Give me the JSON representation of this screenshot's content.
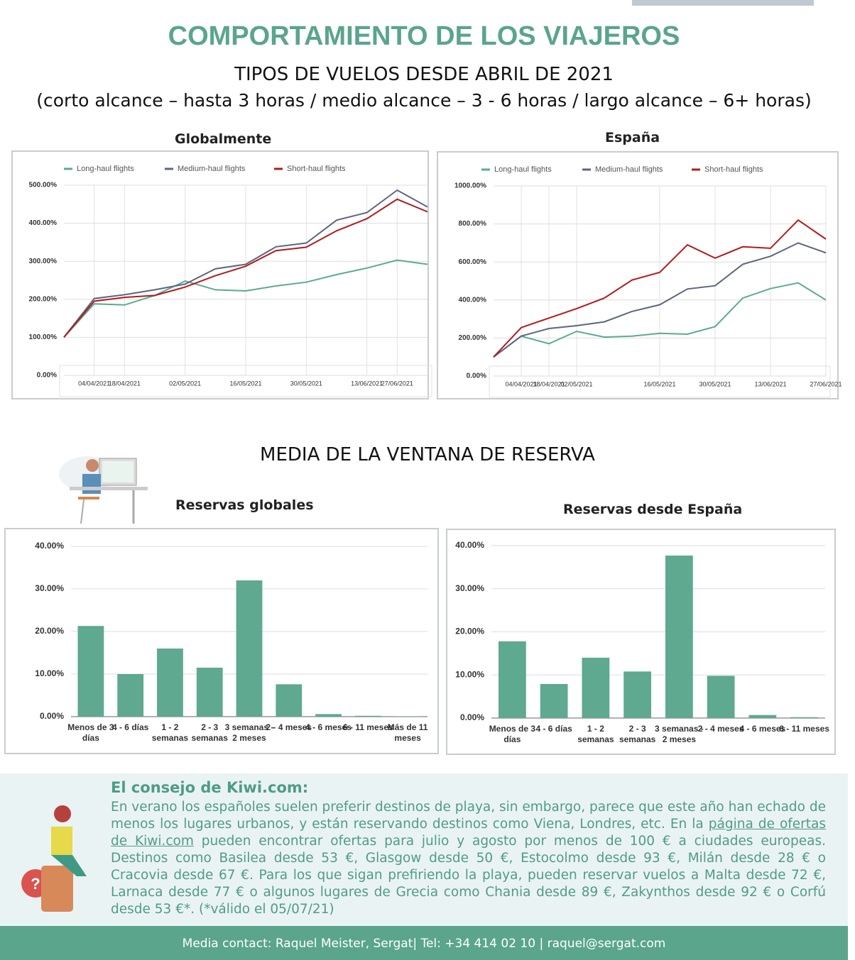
{
  "header": {
    "title": "COMPORTAMIENTO DE LOS VIAJEROS",
    "subtitle": "TIPOS DE VUELOS DESDE ABRIL DE 2021",
    "subtitle2": "(corto alcance – hasta 3 horas / medio alcance – 3 - 6 horas / largo alcance – 6+ horas)"
  },
  "section_title": "MEDIA DE LA VENTANA DE RESERVA",
  "chart_data": [
    {
      "type": "line",
      "title": "Globalmente",
      "categories": [
        null,
        "04/04/2021",
        "18/04/2021",
        null,
        "02/05/2021",
        null,
        "16/05/2021",
        null,
        "30/05/2021",
        null,
        "13/06/2021",
        "27/06/2021",
        null
      ],
      "series": [
        {
          "name": "Long-haul flights",
          "color": "#5aab92",
          "values": [
            100,
            188,
            185,
            210,
            248,
            225,
            222,
            235,
            245,
            265,
            282,
            303,
            292
          ]
        },
        {
          "name": "Medium-haul flights",
          "color": "#5d6580",
          "values": [
            100,
            202,
            212,
            225,
            240,
            280,
            292,
            338,
            348,
            408,
            428,
            487,
            443
          ]
        },
        {
          "name": "Short-haul flights",
          "color": "#b01c1c",
          "values": [
            100,
            195,
            205,
            210,
            232,
            262,
            287,
            328,
            337,
            380,
            412,
            463,
            430
          ]
        }
      ],
      "ylim": [
        0,
        500
      ],
      "yticks": [
        {
          "value": 0,
          "label": "0.00%"
        },
        {
          "value": 100,
          "label": "100.00%"
        },
        {
          "value": 200,
          "label": "200.00%"
        },
        {
          "value": 300,
          "label": "300.00%"
        },
        {
          "value": 400,
          "label": "400.00%"
        },
        {
          "value": 500,
          "label": "500.00%"
        }
      ],
      "grid": true,
      "legend": "top"
    },
    {
      "type": "line",
      "title": "España",
      "categories": [
        null,
        "04/04/2021",
        "18/04/2021",
        "02/05/2021",
        null,
        null,
        "16/05/2021",
        null,
        "30/05/2021",
        null,
        "13/06/2021",
        null,
        "27/06/2021"
      ],
      "series": [
        {
          "name": "Long-haul flights",
          "color": "#5aab92",
          "values": [
            100,
            210,
            170,
            235,
            205,
            210,
            225,
            220,
            260,
            410,
            460,
            490,
            400
          ]
        },
        {
          "name": "Medium-haul flights",
          "color": "#5d6580",
          "values": [
            100,
            210,
            250,
            265,
            285,
            340,
            375,
            458,
            475,
            588,
            630,
            700,
            648
          ]
        },
        {
          "name": "Short-haul flights",
          "color": "#b01c1c",
          "values": [
            100,
            255,
            305,
            355,
            410,
            505,
            545,
            690,
            620,
            680,
            672,
            820,
            720
          ]
        }
      ],
      "ylim": [
        0,
        1000
      ],
      "yticks": [
        {
          "value": 0,
          "label": "0.00%"
        },
        {
          "value": 200,
          "label": "200.00%"
        },
        {
          "value": 400,
          "label": "400.00%"
        },
        {
          "value": 600,
          "label": "600.00%"
        },
        {
          "value": 800,
          "label": "800.00%"
        },
        {
          "value": 1000,
          "label": "1000.00%"
        }
      ],
      "grid": true,
      "legend": "top"
    },
    {
      "type": "bar",
      "title": "Reservas globales",
      "color": "#5ea98f",
      "categories": [
        "Menos de 3 días",
        "4 - 6 días",
        "1 - 2 semanas",
        "2 - 3 semanas",
        "3 semanas - 2 meses",
        "2 - 4 meses",
        "4 - 6 meses",
        "6 - 11 meses",
        "Más de 11 meses"
      ],
      "values": [
        21.3,
        10,
        16,
        11.5,
        32,
        7.6,
        0.6,
        0.2,
        0.05
      ],
      "ylim": [
        0,
        40
      ],
      "yticks": [
        {
          "value": 0,
          "label": "0.00%"
        },
        {
          "value": 10,
          "label": "10.00%"
        },
        {
          "value": 20,
          "label": "20.00%"
        },
        {
          "value": 30,
          "label": "30.00%"
        },
        {
          "value": 40,
          "label": "40.00%"
        }
      ],
      "grid": true
    },
    {
      "type": "bar",
      "title": "Reservas desde España",
      "color": "#5ea98f",
      "categories": [
        "Menos de 3 días",
        "4 - 6 días",
        "1 - 2 semanas",
        "2 - 3 semanas",
        "3 semanas - 2 meses",
        "2 - 4 meses",
        "4 - 6 meses",
        "6 - 11 meses"
      ],
      "values": [
        17.8,
        7.9,
        14,
        10.8,
        37.7,
        9.8,
        0.7,
        0.2
      ],
      "ylim": [
        0,
        40
      ],
      "yticks": [
        {
          "value": 0,
          "label": "0.00%"
        },
        {
          "value": 10,
          "label": "10.00%"
        },
        {
          "value": 20,
          "label": "20.00%"
        },
        {
          "value": 30,
          "label": "30.00%"
        },
        {
          "value": 40,
          "label": "40.00%"
        }
      ],
      "grid": true
    }
  ],
  "tip": {
    "title": "El consejo de Kiwi.com:",
    "text_before": "En verano los españoles suelen preferir destinos de playa, sin embargo, parece que este año han echado de menos los lugares urbanos, y están reservando destinos como Viena, Londres, etc. En la",
    "link": "página de ofertas de Kiwi.com",
    "text_after": "pueden encontrar ofertas para julio y agosto por menos de 100 € a ciudades europeas. Destinos como Basilea desde 53 €,  Glasgow desde 50 €,  Estocolmo desde 93 €, Milán desde 28 € o Cracovia desde 67 €. Para los que sigan prefiriendo la playa, pueden reservar vuelos a Malta desde 72 €, Larnaca desde 77 € o algunos lugares de Grecia como Chania desde 89 €, Zakynthos desde 92 € o Corfú desde 53 €*. (*válido el 05/07/21)"
  },
  "footer": "Media contact: Raquel Meister, Sergat| Tel: +34 414 02 10 | raquel@sergat.com"
}
